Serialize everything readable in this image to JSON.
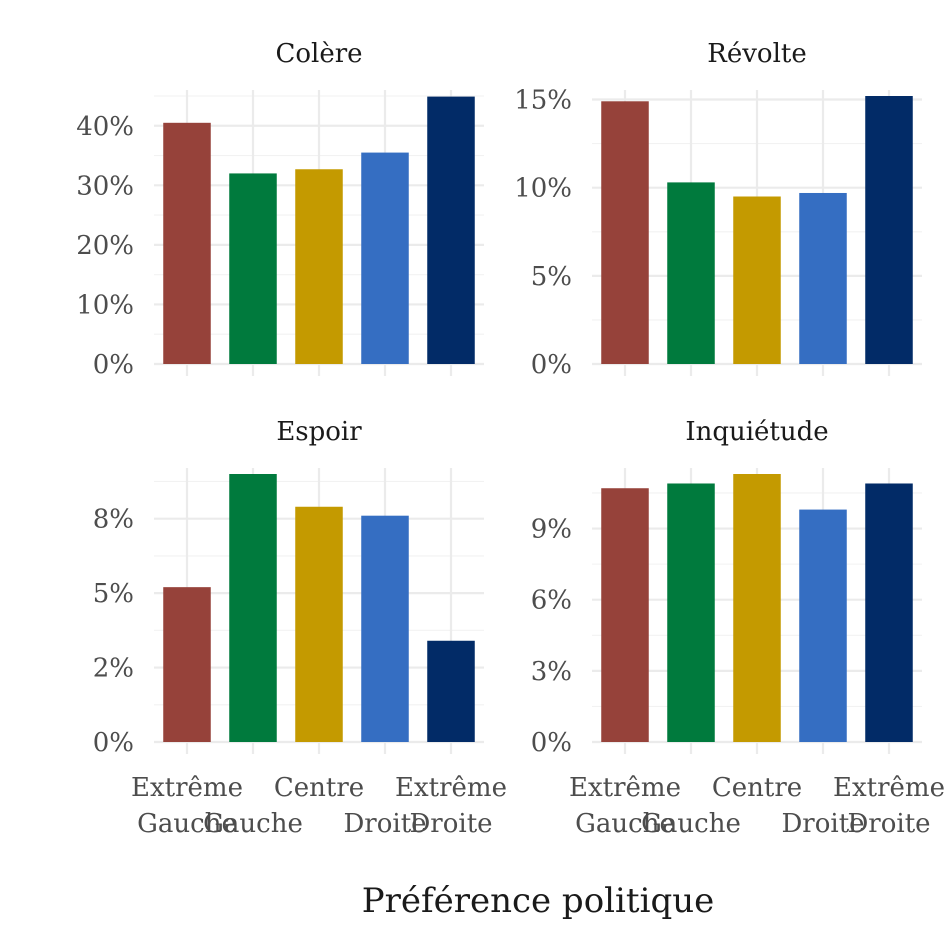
{
  "chart_data": {
    "type": "bar",
    "xlabel": "Préférence politique",
    "categories": [
      {
        "key": "extreme-gauche",
        "lines": [
          "Extrême",
          "Gauche"
        ],
        "row": 0
      },
      {
        "key": "gauche",
        "lines": [
          "Gauche"
        ],
        "row": 1
      },
      {
        "key": "centre",
        "lines": [
          "Centre"
        ],
        "row": 0
      },
      {
        "key": "droite",
        "lines": [
          "Droite"
        ],
        "row": 1
      },
      {
        "key": "extreme-droite",
        "lines": [
          "Extrême",
          "Droite"
        ],
        "row": 0
      }
    ],
    "colors": [
      "#96423A",
      "#007A3D",
      "#C49A00",
      "#356EC2",
      "#022B67"
    ],
    "facets": [
      {
        "title": "Colère",
        "values": [
          40.5,
          32.0,
          32.7,
          35.5,
          44.9
        ],
        "ylim": [
          0,
          45
        ],
        "yticks": [
          0,
          10,
          20,
          30,
          40
        ],
        "ytick_labels": [
          "0%",
          "10%",
          "20%",
          "30%",
          "40%"
        ]
      },
      {
        "title": "Révolte",
        "values": [
          14.9,
          10.3,
          9.5,
          9.7,
          15.2
        ],
        "ylim": [
          0,
          15.2
        ],
        "yticks": [
          0,
          5,
          10,
          15
        ],
        "ytick_labels": [
          "0%",
          "5%",
          "10%",
          "15%"
        ]
      },
      {
        "title": "Espoir",
        "values": [
          5.2,
          9.0,
          7.9,
          7.6,
          3.4
        ],
        "ylim": [
          0,
          9.0
        ],
        "yticks": [
          0,
          2.5,
          5,
          7.5
        ],
        "ytick_labels": [
          "0%",
          "2%",
          "5%",
          "8%"
        ]
      },
      {
        "title": "Inquiétude",
        "values": [
          10.7,
          10.9,
          11.3,
          9.8,
          10.9
        ],
        "ylim": [
          0,
          11.3
        ],
        "yticks": [
          0,
          3,
          6,
          9
        ],
        "ytick_labels": [
          "0%",
          "3%",
          "6%",
          "9%"
        ]
      }
    ]
  }
}
